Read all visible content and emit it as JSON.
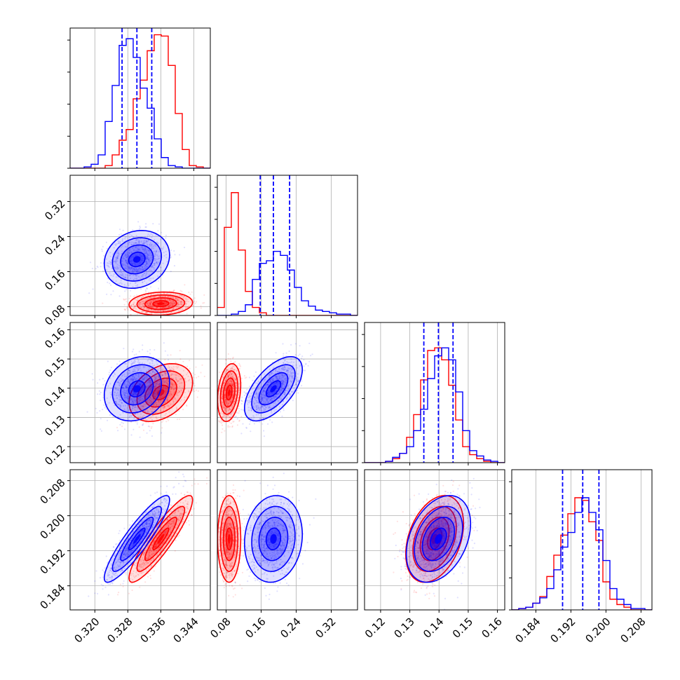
{
  "chart_data": {
    "type": "corner",
    "n_params": 4,
    "series": [
      {
        "name": "",
        "color": "#0000ff"
      },
      {
        "name": "",
        "color": "#ff0000"
      }
    ],
    "grid": true,
    "params": [
      {
        "range": [
          0.314,
          0.348
        ],
        "ticks": [
          0.32,
          0.328,
          0.336,
          0.344
        ],
        "tick_labels": [
          "0.320",
          "0.328",
          "0.336",
          "0.344"
        ]
      },
      {
        "range": [
          0.06,
          0.38
        ],
        "ticks": [
          0.08,
          0.16,
          0.24,
          0.32
        ],
        "tick_labels": [
          "0.08",
          "0.16",
          "0.24",
          "0.32"
        ]
      },
      {
        "range": [
          0.1145,
          0.1625
        ],
        "ticks": [
          0.12,
          0.13,
          0.14,
          0.15,
          0.16
        ],
        "tick_labels": [
          "0.12",
          "0.13",
          "0.14",
          "0.15",
          "0.16"
        ]
      },
      {
        "range": [
          0.1785,
          0.2105
        ],
        "ticks": [
          0.184,
          0.192,
          0.2,
          0.208
        ],
        "tick_labels": [
          "0.184",
          "0.192",
          "0.200",
          "0.208"
        ]
      }
    ],
    "quantile_lines": [
      {
        "param": 0,
        "values": [
          0.3266,
          0.3302,
          0.3338
        ]
      },
      {
        "param": 1,
        "values": [
          0.158,
          0.188,
          0.225
        ]
      },
      {
        "param": 2,
        "values": [
          0.1348,
          0.1398,
          0.1448
        ]
      },
      {
        "param": 3,
        "values": [
          0.1901,
          0.1947,
          0.1984
        ]
      }
    ],
    "marginals": [
      {
        "param": 0,
        "bin_edges": [
          0.314,
          0.3157,
          0.3174,
          0.3191,
          0.3208,
          0.3225,
          0.3242,
          0.3259,
          0.3276,
          0.3293,
          0.331,
          0.3327,
          0.3344,
          0.3361,
          0.3378,
          0.3395,
          0.3412,
          0.3429,
          0.3446,
          0.3463,
          0.348
        ],
        "blue": [
          0,
          0,
          0.01,
          0.03,
          0.1,
          0.35,
          0.62,
          0.92,
          0.97,
          0.83,
          0.6,
          0.45,
          0.22,
          0.08,
          0.02,
          0.01,
          0,
          0,
          0,
          0
        ],
        "red": [
          0,
          0,
          0,
          0,
          0,
          0.02,
          0.1,
          0.21,
          0.29,
          0.52,
          0.66,
          0.88,
          1.0,
          0.99,
          0.77,
          0.41,
          0.14,
          0.02,
          0.01,
          0
        ]
      },
      {
        "param": 1,
        "bin_edges": [
          0.06,
          0.076,
          0.092,
          0.108,
          0.124,
          0.14,
          0.156,
          0.172,
          0.188,
          0.204,
          0.22,
          0.236,
          0.252,
          0.268,
          0.284,
          0.3,
          0.316,
          0.332,
          0.348,
          0.364,
          0.38
        ],
        "blue": [
          0,
          0,
          0.01,
          0.03,
          0.08,
          0.27,
          0.39,
          0.41,
          0.48,
          0.45,
          0.34,
          0.21,
          0.11,
          0.07,
          0.04,
          0.03,
          0.02,
          0.01,
          0.01,
          0
        ],
        "red": [
          0.06,
          0.66,
          0.92,
          0.49,
          0.18,
          0.06,
          0.02,
          0,
          0,
          0,
          0,
          0,
          0,
          0,
          0,
          0,
          0,
          0,
          0,
          0
        ]
      },
      {
        "param": 2,
        "bin_edges": [
          0.1145,
          0.1169,
          0.1193,
          0.1217,
          0.1241,
          0.1265,
          0.1289,
          0.1313,
          0.1337,
          0.1361,
          0.1385,
          0.1409,
          0.1433,
          0.1457,
          0.1481,
          0.1505,
          0.1529,
          0.1553,
          0.1577,
          0.1601,
          0.1625
        ],
        "blue": [
          0,
          0,
          0,
          0.01,
          0.04,
          0.07,
          0.12,
          0.24,
          0.4,
          0.63,
          0.8,
          0.86,
          0.77,
          0.53,
          0.24,
          0.09,
          0.05,
          0.02,
          0.01,
          0
        ],
        "red": [
          0,
          0,
          0,
          0.01,
          0.03,
          0.07,
          0.19,
          0.36,
          0.62,
          0.84,
          0.86,
          0.77,
          0.58,
          0.32,
          0.12,
          0.06,
          0.03,
          0.01,
          0,
          0
        ]
      },
      {
        "param": 3,
        "bin_edges": [
          0.1785,
          0.1801,
          0.1817,
          0.1833,
          0.1849,
          0.1865,
          0.1881,
          0.1897,
          0.1913,
          0.1929,
          0.1945,
          0.1961,
          0.1977,
          0.1993,
          0.2009,
          0.2025,
          0.2041,
          0.2057,
          0.2073,
          0.2089,
          0.2105
        ],
        "blue": [
          0,
          0.01,
          0.02,
          0.05,
          0.09,
          0.16,
          0.3,
          0.47,
          0.58,
          0.73,
          0.84,
          0.73,
          0.6,
          0.37,
          0.16,
          0.08,
          0.04,
          0.01,
          0.01,
          0
        ],
        "red": [
          0,
          0.01,
          0.02,
          0.05,
          0.1,
          0.25,
          0.41,
          0.56,
          0.72,
          0.84,
          0.82,
          0.66,
          0.52,
          0.21,
          0.08,
          0.04,
          0.02,
          0,
          0,
          0
        ]
      }
    ],
    "joint_distributions": {
      "blue": {
        "mean": [
          0.3302,
          0.188,
          0.1398,
          0.1947
        ],
        "sd": [
          0.0036,
          0.03,
          0.005,
          0.0045
        ],
        "corr": [
          [
            1,
            0.15,
            0.2,
            0.9
          ],
          [
            0.15,
            1,
            0.6,
            0.1
          ],
          [
            0.2,
            0.6,
            1,
            0.35
          ],
          [
            0.9,
            0.1,
            0.35,
            1
          ]
        ]
      },
      "red": {
        "mean": [
          0.336,
          0.087,
          0.1385,
          0.1947
        ],
        "sd": [
          0.0035,
          0.012,
          0.0045,
          0.0045
        ],
        "corr": [
          [
            1,
            0.1,
            0.35,
            0.9
          ],
          [
            0.1,
            1,
            0.25,
            0.0
          ],
          [
            0.35,
            0.25,
            1,
            0.35
          ],
          [
            0.9,
            0.0,
            0.35,
            1
          ]
        ]
      }
    },
    "contour_levels_sigma": [
      0.5,
      1.0,
      1.5,
      2.0
    ]
  }
}
